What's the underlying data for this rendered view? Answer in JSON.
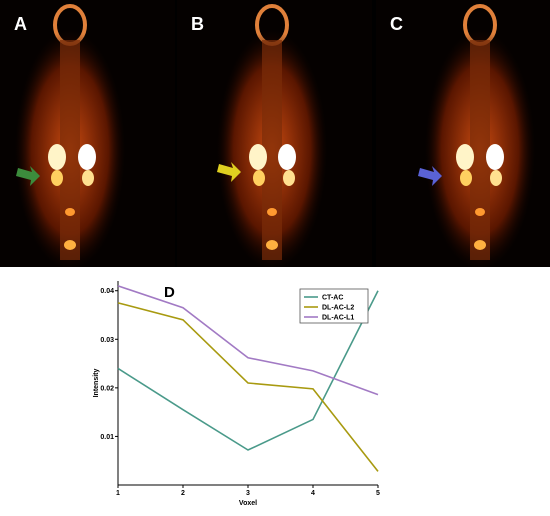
{
  "panels": [
    {
      "label": "A",
      "arrow_color": "#3c8c3c"
    },
    {
      "label": "B",
      "arrow_color": "#e0d020"
    },
    {
      "label": "C",
      "arrow_color": "#5a62d6"
    }
  ],
  "chart_data": {
    "panel_label": "D",
    "type": "line",
    "x": [
      1,
      2,
      3,
      4,
      5
    ],
    "xlabel": "Voxel",
    "ylabel": "Intensity",
    "xlim": [
      1,
      5
    ],
    "ylim": [
      0,
      0.042
    ],
    "x_ticks": [
      "1",
      "2",
      "3",
      "4",
      "5"
    ],
    "y_ticks": [
      {
        "value": 0.01,
        "label": "0.01"
      },
      {
        "value": 0.02,
        "label": "0.02"
      },
      {
        "value": 0.03,
        "label": "0.03"
      },
      {
        "value": 0.04,
        "label": "0.04"
      }
    ],
    "grid": false,
    "legend_position": "top-right",
    "series": [
      {
        "name": "CT-AC",
        "color": "#4a9a8a",
        "values": [
          0.024,
          0.0155,
          0.0072,
          0.0135,
          0.04
        ]
      },
      {
        "name": "DL-AC-L2",
        "color": "#a89a10",
        "values": [
          0.0375,
          0.034,
          0.021,
          0.0198,
          0.0028
        ]
      },
      {
        "name": "DL-AC-L1",
        "color": "#a27ac4",
        "values": [
          0.041,
          0.0365,
          0.0262,
          0.0235,
          0.0186
        ]
      }
    ]
  }
}
